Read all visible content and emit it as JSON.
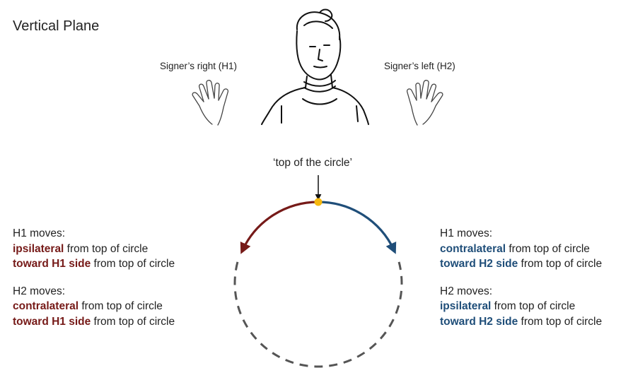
{
  "title": "Vertical Plane",
  "signer_right_label": "Signer’s right (H1)",
  "signer_left_label": "Signer’s left (H2)",
  "top_label": "‘top of the circle’",
  "colors": {
    "h1_side": "#761a18",
    "h2_side": "#1f4e79",
    "dot": "#f6b80e",
    "dashed": "#555555"
  },
  "left_panel": {
    "h1_heading": "H1 moves:",
    "h1_line1_emph": "ipsilateral",
    "h1_line1_rest": " from top of circle",
    "h1_line2_emph": "toward H1 side",
    "h1_line2_rest": " from top of circle",
    "h2_heading": "H2 moves:",
    "h2_line1_emph": "contralateral",
    "h2_line1_rest": " from top of circle",
    "h2_line2_emph": "toward H1 side",
    "h2_line2_rest": " from top of circle"
  },
  "right_panel": {
    "h1_heading": "H1 moves:",
    "h1_line1_emph": "contralateral",
    "h1_line1_rest": " from top of circle",
    "h1_line2_emph": "toward H2 side",
    "h1_line2_rest": " from top of circle",
    "h2_heading": "H2 moves:",
    "h2_line1_emph": "ipsilateral",
    "h2_line1_rest": " from top of circle",
    "h2_line2_emph": "toward H2 side",
    "h2_line2_rest": " from top of circle"
  }
}
